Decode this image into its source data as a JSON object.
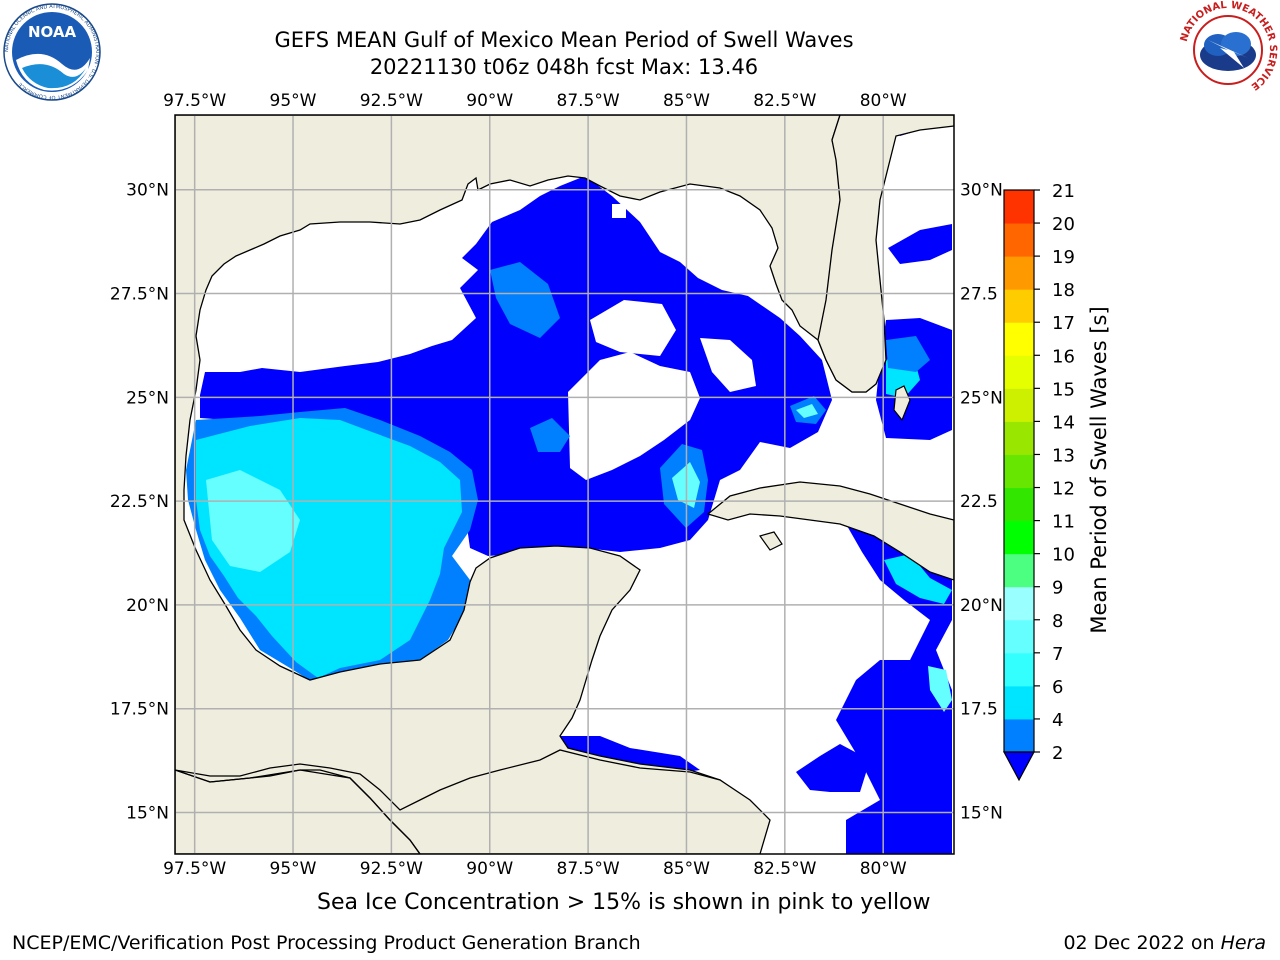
{
  "header": {
    "title_line1": "GEFS MEAN Gulf of Mexico Mean Period of Swell Waves",
    "title_line2": "20221130 t06z 048h fcst   Max: 13.46"
  },
  "logos": {
    "noaa_text": "NOAA",
    "noaa_ring": "NATIONAL OCEANIC AND ATMOSPHERIC ADMINISTRATION · U.S. DEPARTMENT OF COMMERCE",
    "nws_ring": "NATIONAL WEATHER SERVICE"
  },
  "map": {
    "lon_labels": [
      "97.5°W",
      "95°W",
      "92.5°W",
      "90°W",
      "87.5°W",
      "85°W",
      "82.5°W",
      "80°W"
    ],
    "lon_values": [
      -97.5,
      -95,
      -92.5,
      -90,
      -87.5,
      -85,
      -82.5,
      -80
    ],
    "lat_labels_left": [
      "30°N",
      "27.5°N",
      "25°N",
      "22.5°N",
      "20°N",
      "17.5°N",
      "15°N"
    ],
    "lat_labels_right": [
      "30°N",
      "27.5",
      "25°N",
      "22.5",
      "20°N",
      "17.5",
      "15°N"
    ],
    "lat_values": [
      30,
      27.5,
      25,
      22.5,
      20,
      17.5,
      15
    ],
    "extent": {
      "lon_min": -98,
      "lon_max": -78.2,
      "lat_min": 14,
      "lat_max": 31.8
    },
    "land_color": "#efedde",
    "grid_color": "#b0b0b0"
  },
  "colorbar": {
    "label": "Mean Period of Swell Waves [s]",
    "ticks": [
      "2",
      "4",
      "6",
      "7",
      "8",
      "9",
      "10",
      "11",
      "12",
      "13",
      "14",
      "15",
      "16",
      "17",
      "18",
      "19",
      "20",
      "21"
    ],
    "levels": [
      2,
      4,
      6,
      7,
      8,
      9,
      10,
      11,
      12,
      13,
      14,
      15,
      16,
      17,
      18,
      19,
      20,
      21
    ],
    "colors": [
      "#0000ff",
      "#0080ff",
      "#00e5ff",
      "#33ffff",
      "#66ffff",
      "#99ffff",
      "#4dff80",
      "#00ff00",
      "#33e600",
      "#66e600",
      "#99e600",
      "#ccf000",
      "#e6ff00",
      "#ffff00",
      "#ffcc00",
      "#ff9900",
      "#ff6600",
      "#ff3300",
      "#ff0000"
    ],
    "extend": "min"
  },
  "footer": {
    "note": "Sea Ice Concentration > 15% is shown in pink to yellow",
    "left": "NCEP/EMC/Verification Post Processing Product Generation Branch",
    "right_date": "02 Dec 2022 on ",
    "right_host": "Hera"
  }
}
